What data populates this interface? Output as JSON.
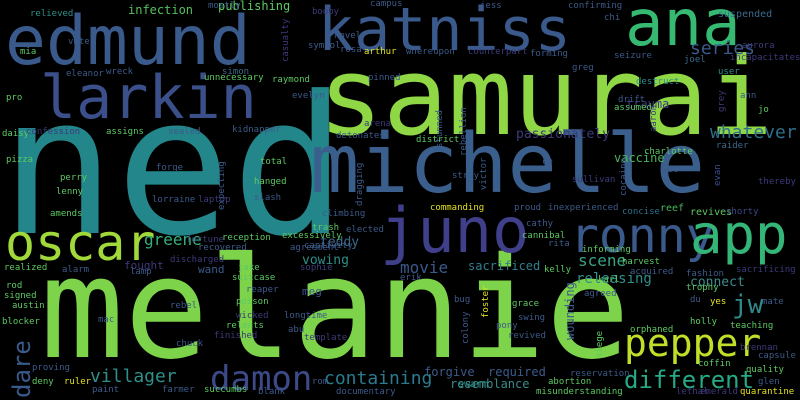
{
  "words": [
    {
      "text": "ned",
      "color": "#23868b"
    },
    {
      "text": "melanie",
      "color": "#7dd34a"
    },
    {
      "text": "samurai",
      "color": "#8fd744"
    },
    {
      "text": "michelle",
      "color": "#3b5f8c"
    },
    {
      "text": "edmund",
      "color": "#3a5a8c"
    },
    {
      "text": "katniss",
      "color": "#3a5a8c"
    },
    {
      "text": "ana",
      "color": "#36ba72"
    },
    {
      "text": "larkin",
      "color": "#3b4f8a"
    },
    {
      "text": "oscar",
      "color": "#a2d93a"
    },
    {
      "text": "juno",
      "color": "#3f3f8a"
    },
    {
      "text": "ronny",
      "color": "#3a5a8c"
    },
    {
      "text": "app",
      "color": "#34b679"
    },
    {
      "text": "jw",
      "color": "#2f8a8c"
    },
    {
      "text": "pepper",
      "color": "#c0df29"
    },
    {
      "text": "damon",
      "color": "#3d4a8a"
    },
    {
      "text": "different",
      "color": "#26a985"
    },
    {
      "text": "containing",
      "color": "#2b7b8e"
    },
    {
      "text": "villager",
      "color": "#2f8f8a"
    },
    {
      "text": "dare",
      "color": "#3a5a8c"
    },
    {
      "text": "movie",
      "color": "#3a5a8c"
    },
    {
      "text": "scene",
      "color": "#38a383"
    },
    {
      "text": "whatever",
      "color": "#2f6f8c"
    },
    {
      "text": "series",
      "color": "#3a5a8c"
    },
    {
      "text": "greene",
      "color": "#36b27a"
    },
    {
      "text": "teddy",
      "color": "#3d6a8c"
    },
    {
      "text": "connect",
      "color": "#3f8a8c"
    },
    {
      "text": "releasing",
      "color": "#2f8f8a"
    },
    {
      "text": "sacrificed",
      "color": "#2f7f8c"
    },
    {
      "text": "passionately",
      "color": "#3d3a7a"
    },
    {
      "text": "vaccine",
      "color": "#4ab55a"
    },
    {
      "text": "trauma",
      "color": "#3d3a7a"
    },
    {
      "text": "suspended",
      "color": "#3d6a8c"
    },
    {
      "text": "infection",
      "color": "#55c060"
    },
    {
      "text": "publishing",
      "color": "#5ec962"
    },
    {
      "text": "required",
      "color": "#3d5a8a"
    },
    {
      "text": "forgive",
      "color": "#3d5a8a"
    },
    {
      "text": "resemblance",
      "color": "#3a8c8c"
    },
    {
      "text": "swarm",
      "color": "#2f8f8a"
    },
    {
      "text": "vowing",
      "color": "#2f8f8a"
    },
    {
      "text": "wounding",
      "color": "#3d5a8a"
    },
    {
      "text": "fought",
      "color": "#3d3a7a"
    },
    {
      "text": "wand",
      "color": "#3a5a8c"
    },
    {
      "text": "meg",
      "color": "#3d5a8a"
    },
    {
      "text": "commanding",
      "color": "#e0e020"
    },
    {
      "text": "inexperienced",
      "color": "#3d5a8a"
    },
    {
      "text": "proud",
      "color": "#3d5a8a"
    },
    {
      "text": "reef",
      "color": "#4ab55a"
    },
    {
      "text": "concise",
      "color": "#2f6f8c"
    },
    {
      "text": "revives",
      "color": "#5ec962"
    },
    {
      "text": "shorty",
      "color": "#3d4a8a"
    },
    {
      "text": "thereby",
      "color": "#3d3a7a"
    },
    {
      "text": "charlotte",
      "color": "#5ec962"
    },
    {
      "text": "raider",
      "color": "#3d6a8c"
    },
    {
      "text": "wet",
      "color": "#3d5a8a"
    },
    {
      "text": "evan",
      "color": "#3d4a8a"
    },
    {
      "text": "du",
      "color": "#3d5a8a"
    },
    {
      "text": "yes",
      "color": "#e0e020"
    },
    {
      "text": "jo",
      "color": "#5ec962"
    },
    {
      "text": "ann",
      "color": "#3d5a8a"
    },
    {
      "text": "grey",
      "color": "#3d3a7a"
    },
    {
      "text": "user",
      "color": "#2f8f8a"
    },
    {
      "text": "destruct",
      "color": "#2f8f8a"
    },
    {
      "text": "drift",
      "color": "#3d5a8a"
    },
    {
      "text": "assumed",
      "color": "#5ec962"
    },
    {
      "text": "aaron",
      "color": "#3d3a7a"
    },
    {
      "text": "seizure",
      "color": "#3d5a8a"
    },
    {
      "text": "greg",
      "color": "#3d5a8a"
    },
    {
      "text": "joel",
      "color": "#3d6a8c"
    },
    {
      "text": "incapacitates",
      "color": "#3d3a7a"
    },
    {
      "text": "aurora",
      "color": "#3d3a7a"
    },
    {
      "text": "chi",
      "color": "#3d5a8a"
    },
    {
      "text": "confirming",
      "color": "#3d5a8a"
    },
    {
      "text": "jess",
      "color": "#3d5a8a"
    },
    {
      "text": "campus",
      "color": "#3d5a8a"
    },
    {
      "text": "booby",
      "color": "#3d3a7a"
    },
    {
      "text": "mostly",
      "color": "#3d5a8a"
    },
    {
      "text": "casualty",
      "color": "#3d3a7a"
    },
    {
      "text": "novel",
      "color": "#3d5a8a"
    },
    {
      "text": "rosa",
      "color": "#3d5a8a"
    },
    {
      "text": "arthur",
      "color": "#e0e020"
    },
    {
      "text": "symbol",
      "color": "#3d5a8a"
    },
    {
      "text": "whereupon",
      "color": "#3d5a8a"
    },
    {
      "text": "counterpart",
      "color": "#3d3a7a"
    },
    {
      "text": "forming",
      "color": "#3d5a8a"
    },
    {
      "text": "pinned",
      "color": "#3d5a8a"
    },
    {
      "text": "stunned",
      "color": "#3d5a8a"
    },
    {
      "text": "rebellion",
      "color": "#3d5a8a"
    },
    {
      "text": "relieved",
      "color": "#2f8f8a"
    },
    {
      "text": "vote",
      "color": "#3d5a8a"
    },
    {
      "text": "mia",
      "color": "#5ec962"
    },
    {
      "text": "eleanor",
      "color": "#3d5a8a"
    },
    {
      "text": "wreck",
      "color": "#3d5a8a"
    },
    {
      "text": "simon",
      "color": "#3d6a8c"
    },
    {
      "text": "unnecessary",
      "color": "#5ec962"
    },
    {
      "text": "raymond",
      "color": "#5ec962"
    },
    {
      "text": "evelyn",
      "color": "#3d5a8a"
    },
    {
      "text": "pro",
      "color": "#5ec962"
    },
    {
      "text": "daisy",
      "color": "#5ec962"
    },
    {
      "text": "confession",
      "color": "#3d3a7a"
    },
    {
      "text": "assigns",
      "color": "#5ec962"
    },
    {
      "text": "sealed",
      "color": "#3d5a8a"
    },
    {
      "text": "kidnapper",
      "color": "#3d5a8a"
    },
    {
      "text": "detonates",
      "color": "#3d5a8a"
    },
    {
      "text": "arena",
      "color": "#3d3a7a"
    },
    {
      "text": "district",
      "color": "#5ec962"
    },
    {
      "text": "pizza",
      "color": "#5ec962"
    },
    {
      "text": "perry",
      "color": "#5ec962"
    },
    {
      "text": "lenny",
      "color": "#5ec962"
    },
    {
      "text": "amends",
      "color": "#5ec962"
    },
    {
      "text": "forge",
      "color": "#3d5a8a"
    },
    {
      "text": "lorraine",
      "color": "#3d5a8a"
    },
    {
      "text": "laptop",
      "color": "#3d3a7a"
    },
    {
      "text": "expecting",
      "color": "#3d5a8a"
    },
    {
      "text": "total",
      "color": "#5ec962"
    },
    {
      "text": "hanged",
      "color": "#5ec962"
    },
    {
      "text": "slash",
      "color": "#3d5a8a"
    },
    {
      "text": "dragging",
      "color": "#3d5a8a"
    },
    {
      "text": "victor",
      "color": "#3d5a8a"
    },
    {
      "text": "stray",
      "color": "#3d5a8a"
    },
    {
      "text": "ce",
      "color": "#3d5a8a"
    },
    {
      "text": "sullivan",
      "color": "#3d3a7a"
    },
    {
      "text": "cocaine",
      "color": "#3d5a8a"
    },
    {
      "text": "climbing",
      "color": "#3d5a8a"
    },
    {
      "text": "trash",
      "color": "#5ec962"
    },
    {
      "text": "excessively",
      "color": "#5ec962"
    },
    {
      "text": "elected",
      "color": "#3d5a8a"
    },
    {
      "text": "captivity",
      "color": "#3d5a8a"
    },
    {
      "text": "cathy",
      "color": "#3d5a8a"
    },
    {
      "text": "cannibal",
      "color": "#5ec962"
    },
    {
      "text": "rita",
      "color": "#3d5a8a"
    },
    {
      "text": "reception",
      "color": "#5ec962"
    },
    {
      "text": "recovered",
      "color": "#3d5a8a"
    },
    {
      "text": "fortune",
      "color": "#3d3a7a"
    },
    {
      "text": "discharged",
      "color": "#3d3a7a"
    },
    {
      "text": "agreement",
      "color": "#3d5a8a"
    },
    {
      "text": "sophie",
      "color": "#3d3a7a"
    },
    {
      "text": "jake",
      "color": "#5ec962"
    },
    {
      "text": "suitcase",
      "color": "#5ec962"
    },
    {
      "text": "reaper",
      "color": "#3d5a8a"
    },
    {
      "text": "poison",
      "color": "#5ec962"
    },
    {
      "text": "wicked",
      "color": "#3d3a7a"
    },
    {
      "text": "relents",
      "color": "#5ec962"
    },
    {
      "text": "finished",
      "color": "#3d3a7a"
    },
    {
      "text": "longtime",
      "color": "#3d5a8a"
    },
    {
      "text": "abu",
      "color": "#3d5a8a"
    },
    {
      "text": "template",
      "color": "#3d3a7a"
    },
    {
      "text": "realized",
      "color": "#5ec962"
    },
    {
      "text": "alarm",
      "color": "#3d5a8a"
    },
    {
      "text": "lamp",
      "color": "#3d5a8a"
    },
    {
      "text": "rebel",
      "color": "#3d5a8a"
    },
    {
      "text": "chuck",
      "color": "#3d5a8a"
    },
    {
      "text": "rod",
      "color": "#5ec962"
    },
    {
      "text": "signed",
      "color": "#5ec962"
    },
    {
      "text": "austin",
      "color": "#5ec962"
    },
    {
      "text": "blocker",
      "color": "#5ec962"
    },
    {
      "text": "mac",
      "color": "#3d5a8a"
    },
    {
      "text": "proving",
      "color": "#3d5a8a"
    },
    {
      "text": "deny",
      "color": "#5ec962"
    },
    {
      "text": "ruler",
      "color": "#e0e020"
    },
    {
      "text": "paint",
      "color": "#3d5a8a"
    },
    {
      "text": "farmer",
      "color": "#3d5a8a"
    },
    {
      "text": "succumbs",
      "color": "#5ec962"
    },
    {
      "text": "blank",
      "color": "#3d5a8a"
    },
    {
      "text": "rom",
      "color": "#3d5a8a"
    },
    {
      "text": "documentary",
      "color": "#3d5a8a"
    },
    {
      "text": "colony",
      "color": "#3d5a8a"
    },
    {
      "text": "foster",
      "color": "#e0e020"
    },
    {
      "text": "pony",
      "color": "#3d5a8a"
    },
    {
      "text": "bug",
      "color": "#3d5a8a"
    },
    {
      "text": "swing",
      "color": "#3d5a8a"
    },
    {
      "text": "grace",
      "color": "#5ec962"
    },
    {
      "text": "revived",
      "color": "#3d5a8a"
    },
    {
      "text": "kelly",
      "color": "#5ec962"
    },
    {
      "text": "karl",
      "color": "#5ec962"
    },
    {
      "text": "acquired",
      "color": "#3d5a8a"
    },
    {
      "text": "agreed",
      "color": "#3d5a8a"
    },
    {
      "text": "harvest",
      "color": "#5ec962"
    },
    {
      "text": "informing",
      "color": "#5ec962"
    },
    {
      "text": "erik",
      "color": "#3d5a8a"
    },
    {
      "text": "siege",
      "color": "#5ec962"
    },
    {
      "text": "reservation",
      "color": "#3d5a8a"
    },
    {
      "text": "abortion",
      "color": "#5ec962"
    },
    {
      "text": "misunderstanding",
      "color": "#5ec962"
    },
    {
      "text": "lethal",
      "color": "#3d3a7a"
    },
    {
      "text": "emerald",
      "color": "#3d3a7a"
    },
    {
      "text": "quarantine",
      "color": "#e0e020"
    },
    {
      "text": "orphaned",
      "color": "#5ec962"
    },
    {
      "text": "fashion",
      "color": "#3d5a8a"
    },
    {
      "text": "trophy",
      "color": "#5ec962"
    },
    {
      "text": "holly",
      "color": "#5ec962"
    },
    {
      "text": "teaching",
      "color": "#5ec962"
    },
    {
      "text": "mate",
      "color": "#3d5a8a"
    },
    {
      "text": "sacrificing",
      "color": "#3d3a7a"
    },
    {
      "text": "coffin",
      "color": "#5ec962"
    },
    {
      "text": "quality",
      "color": "#5ec962"
    },
    {
      "text": "capsule",
      "color": "#3d5a8a"
    },
    {
      "text": "glen",
      "color": "#3d5a8a"
    },
    {
      "text": "brennan",
      "color": "#3d3a7a"
    }
  ]
}
